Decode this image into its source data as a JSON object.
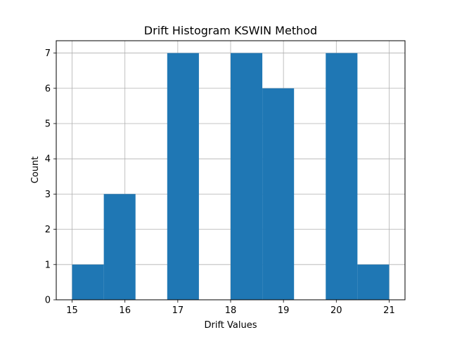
{
  "chart_data": {
    "type": "bar",
    "title": "Drift Histogram KSWIN Method",
    "xlabel": "Drift Values",
    "ylabel": "Count",
    "xlim": [
      14.7,
      21.3
    ],
    "ylim": [
      0,
      7.35
    ],
    "xticks": [
      15,
      16,
      17,
      18,
      19,
      20,
      21
    ],
    "yticks": [
      0,
      1,
      2,
      3,
      4,
      5,
      6,
      7
    ],
    "bins": [
      {
        "start": 15.0,
        "end": 15.6,
        "count": 1
      },
      {
        "start": 15.6,
        "end": 16.2,
        "count": 3
      },
      {
        "start": 16.2,
        "end": 16.8,
        "count": 0
      },
      {
        "start": 16.8,
        "end": 17.4,
        "count": 7
      },
      {
        "start": 17.4,
        "end": 18.0,
        "count": 0
      },
      {
        "start": 18.0,
        "end": 18.6,
        "count": 7
      },
      {
        "start": 18.6,
        "end": 19.2,
        "count": 6
      },
      {
        "start": 19.2,
        "end": 19.8,
        "count": 0
      },
      {
        "start": 19.8,
        "end": 20.4,
        "count": 7
      },
      {
        "start": 20.4,
        "end": 21.0,
        "count": 1
      }
    ],
    "grid": true,
    "colors": {
      "bar": "#1f77b4",
      "grid": "#b0b0b0",
      "axis": "#000000"
    }
  }
}
